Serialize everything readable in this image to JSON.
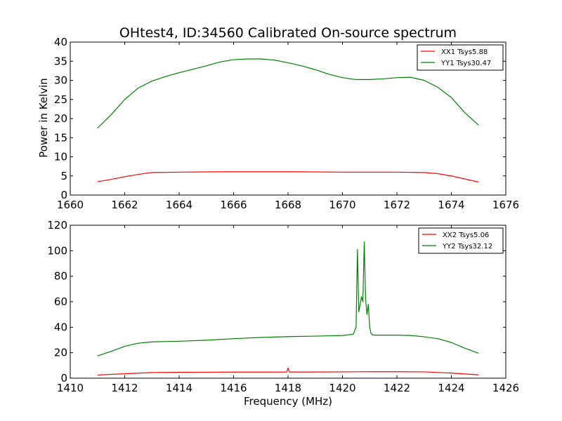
{
  "figure": {
    "title": "OHtest4, ID:34560 Calibrated On-source spectrum",
    "xlabel": "Frequency (MHz)",
    "ylabel": "Power in Kelvin"
  },
  "chart_data": [
    {
      "type": "line",
      "xlim": [
        1660,
        1676
      ],
      "ylim": [
        0,
        40
      ],
      "xticks": [
        1660,
        1662,
        1664,
        1666,
        1668,
        1670,
        1672,
        1674,
        1676
      ],
      "yticks": [
        0,
        5,
        10,
        15,
        20,
        25,
        30,
        35,
        40
      ],
      "ylabel": "Power in Kelvin",
      "grid": false,
      "legend_position": "top-right",
      "series": [
        {
          "name": "XX1 Tsys5.88",
          "color": "#ff0000",
          "x": [
            1661.0,
            1661.5,
            1662.0,
            1662.5,
            1663.0,
            1664.0,
            1665.0,
            1666.0,
            1667.0,
            1668.0,
            1669.0,
            1670.0,
            1671.0,
            1672.0,
            1673.0,
            1673.5,
            1674.0,
            1674.5,
            1675.0
          ],
          "values": [
            3.5,
            4.1,
            4.8,
            5.4,
            5.9,
            6.0,
            6.05,
            6.1,
            6.1,
            6.1,
            6.05,
            6.0,
            6.0,
            6.0,
            5.9,
            5.6,
            5.0,
            4.2,
            3.4
          ]
        },
        {
          "name": "YY1 Tsys30.47",
          "color": "#008000",
          "x": [
            1661.0,
            1661.5,
            1662.0,
            1662.5,
            1663.0,
            1663.5,
            1664.0,
            1664.5,
            1665.0,
            1665.5,
            1666.0,
            1666.5,
            1667.0,
            1667.5,
            1668.0,
            1668.5,
            1669.0,
            1669.5,
            1670.0,
            1670.5,
            1671.0,
            1671.5,
            1672.0,
            1672.5,
            1673.0,
            1673.5,
            1674.0,
            1674.5,
            1675.0
          ],
          "values": [
            17.5,
            21.0,
            25.0,
            28.0,
            29.8,
            31.0,
            32.0,
            32.9,
            33.8,
            34.8,
            35.4,
            35.6,
            35.6,
            35.3,
            34.6,
            33.8,
            32.8,
            31.6,
            30.7,
            30.2,
            30.2,
            30.4,
            30.7,
            30.8,
            30.0,
            28.2,
            25.5,
            21.5,
            18.3
          ]
        }
      ]
    },
    {
      "type": "line",
      "xlim": [
        1410,
        1426
      ],
      "ylim": [
        0,
        120
      ],
      "xticks": [
        1410,
        1412,
        1414,
        1416,
        1418,
        1420,
        1422,
        1424,
        1426
      ],
      "yticks": [
        0,
        20,
        40,
        60,
        80,
        100,
        120
      ],
      "xlabel": "Frequency (MHz)",
      "grid": false,
      "legend_position": "top-right",
      "series": [
        {
          "name": "XX2 Tsys5.06",
          "color": "#ff0000",
          "x": [
            1411.0,
            1412.0,
            1413.0,
            1414.0,
            1415.0,
            1416.0,
            1417.0,
            1417.95,
            1418.0,
            1418.05,
            1419.0,
            1420.0,
            1421.0,
            1422.0,
            1423.0,
            1424.0,
            1425.0
          ],
          "values": [
            2.5,
            3.5,
            4.4,
            4.6,
            4.7,
            4.8,
            4.8,
            4.9,
            8.0,
            4.9,
            4.9,
            5.0,
            5.1,
            5.1,
            5.0,
            4.0,
            2.7
          ]
        },
        {
          "name": "YY2 Tsys32.12",
          "color": "#008000",
          "x": [
            1411.0,
            1411.5,
            1412.0,
            1412.5,
            1413.0,
            1414.0,
            1415.0,
            1416.0,
            1417.0,
            1418.0,
            1419.0,
            1420.0,
            1420.4,
            1420.5,
            1420.55,
            1420.6,
            1420.65,
            1420.7,
            1420.75,
            1420.8,
            1420.85,
            1420.9,
            1420.95,
            1421.0,
            1421.05,
            1421.1,
            1421.2,
            1421.5,
            1422.0,
            1422.5,
            1423.0,
            1423.5,
            1424.0,
            1424.5,
            1425.0
          ],
          "values": [
            17.5,
            21.0,
            25.0,
            27.5,
            28.5,
            29.0,
            29.8,
            31.0,
            32.0,
            32.6,
            33.0,
            33.5,
            34.5,
            40.0,
            101.0,
            52.0,
            58.0,
            64.0,
            60.0,
            107.0,
            62.0,
            50.0,
            58.0,
            40.0,
            35.0,
            34.0,
            33.8,
            33.8,
            33.8,
            33.5,
            32.5,
            31.0,
            28.0,
            23.5,
            19.5
          ]
        }
      ]
    }
  ]
}
